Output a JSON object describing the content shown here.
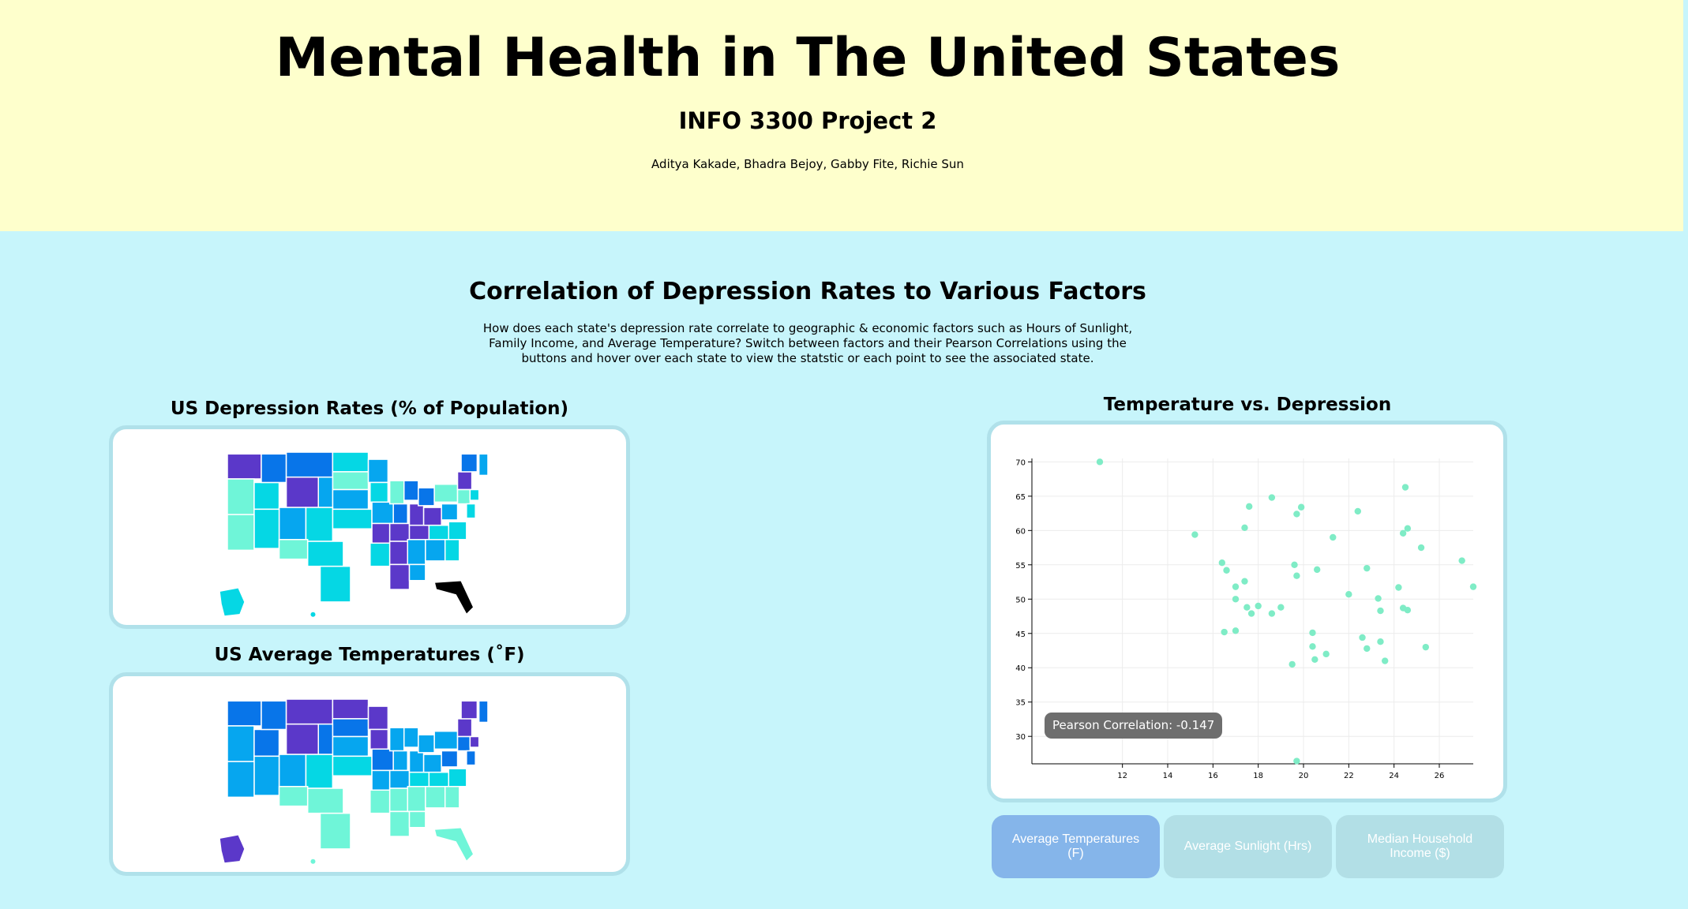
{
  "header": {
    "title": "Mental Health in The United States",
    "subtitle": "INFO 3300 Project 2",
    "authors": "Aditya Kakade, Bhadra Bejoy, Gabby Fite, Richie Sun"
  },
  "section": {
    "title": "Correlation of Depression Rates to Various Factors",
    "description": "How does each state's depression rate correlate to geographic & economic factors such as Hours of Sunlight, Family Income, and Average Temperature? Switch between factors and their Pearson Correlations using the buttons and hover over each state to view the statstic or each point to see the associated state."
  },
  "maps": {
    "depression_title": "US Depression Rates (% of Population)",
    "temperature_title": "US Average Temperatures (˚F)"
  },
  "colors": {
    "scale": [
      "#6ff5d8",
      "#05d7e4",
      "#06a6ef",
      "#0875e9",
      "#5b38c9",
      "#000000"
    ],
    "point": "#7fecc6"
  },
  "buttons": [
    {
      "label": "Average Temperatures (F)",
      "active": true
    },
    {
      "label": "Average Sunlight (Hrs)",
      "active": false
    },
    {
      "label": "Median Household Income ($)",
      "active": false
    }
  ],
  "tooltip": "Pearson Correlation: -0.147",
  "chart_data": {
    "type": "scatter",
    "title": "Temperature vs. Depression",
    "xlim": [
      8,
      27.5
    ],
    "ylim": [
      26,
      70.5
    ],
    "x_ticks": [
      12,
      14,
      16,
      18,
      20,
      22,
      24,
      26
    ],
    "y_ticks": [
      30,
      35,
      40,
      45,
      50,
      55,
      60,
      65,
      70
    ],
    "grid": true,
    "points": [
      [
        11.0,
        70.0
      ],
      [
        15.2,
        59.4
      ],
      [
        16.4,
        55.3
      ],
      [
        16.6,
        54.2
      ],
      [
        17.0,
        51.8
      ],
      [
        17.0,
        50.0
      ],
      [
        16.5,
        45.2
      ],
      [
        17.0,
        45.4
      ],
      [
        17.4,
        52.6
      ],
      [
        17.4,
        60.4
      ],
      [
        17.6,
        63.5
      ],
      [
        17.5,
        48.8
      ],
      [
        17.7,
        47.9
      ],
      [
        18.0,
        49.0
      ],
      [
        18.6,
        64.8
      ],
      [
        18.6,
        47.9
      ],
      [
        19.0,
        48.8
      ],
      [
        19.5,
        40.5
      ],
      [
        19.6,
        55.0
      ],
      [
        19.7,
        53.4
      ],
      [
        19.7,
        62.4
      ],
      [
        19.9,
        63.4
      ],
      [
        20.4,
        45.1
      ],
      [
        20.4,
        43.1
      ],
      [
        20.5,
        41.2
      ],
      [
        20.6,
        54.3
      ],
      [
        21.0,
        42.0
      ],
      [
        21.3,
        59.0
      ],
      [
        22.0,
        50.7
      ],
      [
        22.4,
        62.8
      ],
      [
        22.6,
        44.4
      ],
      [
        22.8,
        42.8
      ],
      [
        22.8,
        54.5
      ],
      [
        23.3,
        50.1
      ],
      [
        23.4,
        48.3
      ],
      [
        23.4,
        43.8
      ],
      [
        23.6,
        41.0
      ],
      [
        24.2,
        51.7
      ],
      [
        24.4,
        59.6
      ],
      [
        24.4,
        48.7
      ],
      [
        24.5,
        66.3
      ],
      [
        24.6,
        48.4
      ],
      [
        24.6,
        60.3
      ],
      [
        25.2,
        57.5
      ],
      [
        25.4,
        43.0
      ],
      [
        27.0,
        55.6
      ],
      [
        27.5,
        51.8
      ],
      [
        19.7,
        26.4
      ]
    ]
  }
}
